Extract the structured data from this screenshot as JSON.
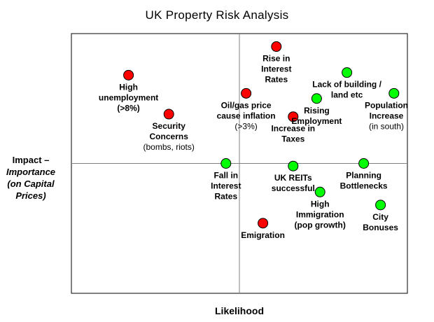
{
  "chart_data": {
    "type": "scatter",
    "title": "UK Property Risk Analysis",
    "xlabel": "Likelihood",
    "ylabel": "Impact –",
    "ylabel_sub": [
      "Importance",
      "(on Capital Prices)"
    ],
    "xlim": [
      0,
      100
    ],
    "ylim": [
      0,
      100
    ],
    "quadrant_lines": {
      "x": 50,
      "y": 50
    },
    "colors": {
      "risk": "#ff0000",
      "positive": "#00ff00",
      "outline": "#000000"
    },
    "points": [
      {
        "id": "rise-in-interest-rates",
        "x": 61,
        "y": 95,
        "category": "risk",
        "lines": [
          {
            "t": "Rise in",
            "s": "bold"
          },
          {
            "t": "Interest",
            "s": "bold"
          },
          {
            "t": "Rates",
            "s": "bold"
          }
        ]
      },
      {
        "id": "high-unemployment",
        "x": 17,
        "y": 84,
        "category": "risk",
        "lines": [
          {
            "t": "High",
            "s": "bold"
          },
          {
            "t": "unemployment",
            "s": "bold"
          },
          {
            "t": "(>8%)",
            "s": "bold"
          }
        ]
      },
      {
        "id": "oil-gas-price",
        "x": 52,
        "y": 77,
        "category": "risk",
        "lines": [
          {
            "t": "Oil/gas price",
            "s": "bold"
          },
          {
            "t": "cause inflation",
            "s": "bold"
          },
          {
            "t": "(>3%)",
            "s": "normal"
          }
        ]
      },
      {
        "id": "security-concerns",
        "x": 29,
        "y": 69,
        "category": "risk",
        "lines": [
          {
            "t": "Security",
            "s": "bold"
          },
          {
            "t": "Concerns",
            "s": "bold"
          },
          {
            "t": "(bombs, riots)",
            "s": "normal"
          }
        ]
      },
      {
        "id": "increase-in-taxes",
        "x": 66,
        "y": 68,
        "category": "risk",
        "lines": [
          {
            "t": "Increase in",
            "s": "bold"
          },
          {
            "t": "Taxes",
            "s": "bold"
          }
        ]
      },
      {
        "id": "emigration",
        "x": 57,
        "y": 27,
        "category": "risk",
        "lines": [
          {
            "t": "Emigration",
            "s": "bold"
          }
        ]
      },
      {
        "id": "lack-of-building",
        "x": 82,
        "y": 85,
        "category": "positive",
        "lines": [
          {
            "t": "Lack of building /",
            "s": "bold"
          },
          {
            "t": "land etc",
            "s": "bold"
          }
        ]
      },
      {
        "id": "population-increase",
        "x": 96,
        "y": 77,
        "category": "positive",
        "lines": [
          {
            "t": "Population",
            "s": "bold"
          },
          {
            "t": "Increase",
            "s": "bold"
          },
          {
            "t": "(in south)",
            "s": "normal"
          }
        ]
      },
      {
        "id": "rising-employment",
        "x": 73,
        "y": 75,
        "category": "positive",
        "lines": [
          {
            "t": "Rising",
            "s": "bold"
          },
          {
            "t": "Employment",
            "s": "bold"
          }
        ]
      },
      {
        "id": "fall-in-interest-rates",
        "x": 46,
        "y": 50,
        "category": "positive",
        "lines": [
          {
            "t": "Fall in",
            "s": "bold"
          },
          {
            "t": "Interest",
            "s": "bold"
          },
          {
            "t": "Rates",
            "s": "bold"
          }
        ]
      },
      {
        "id": "uk-reits-successful",
        "x": 66,
        "y": 49,
        "category": "positive",
        "lines": [
          {
            "t": "UK REITs",
            "s": "bold"
          },
          {
            "t": "successful",
            "s": "bold"
          }
        ]
      },
      {
        "id": "planning-bottlenecks",
        "x": 87,
        "y": 50,
        "category": "positive",
        "lines": [
          {
            "t": "Planning",
            "s": "bold"
          },
          {
            "t": "Bottlenecks",
            "s": "bold"
          }
        ]
      },
      {
        "id": "high-immigration",
        "x": 74,
        "y": 39,
        "category": "positive",
        "lines": [
          {
            "t": "High",
            "s": "bold"
          },
          {
            "t": "Immigration",
            "s": "bold"
          },
          {
            "t": "(pop growth)",
            "s": "bold"
          }
        ]
      },
      {
        "id": "city-bonuses",
        "x": 92,
        "y": 34,
        "category": "positive",
        "lines": [
          {
            "t": "City",
            "s": "bold"
          },
          {
            "t": "Bonuses",
            "s": "bold"
          }
        ]
      }
    ]
  }
}
